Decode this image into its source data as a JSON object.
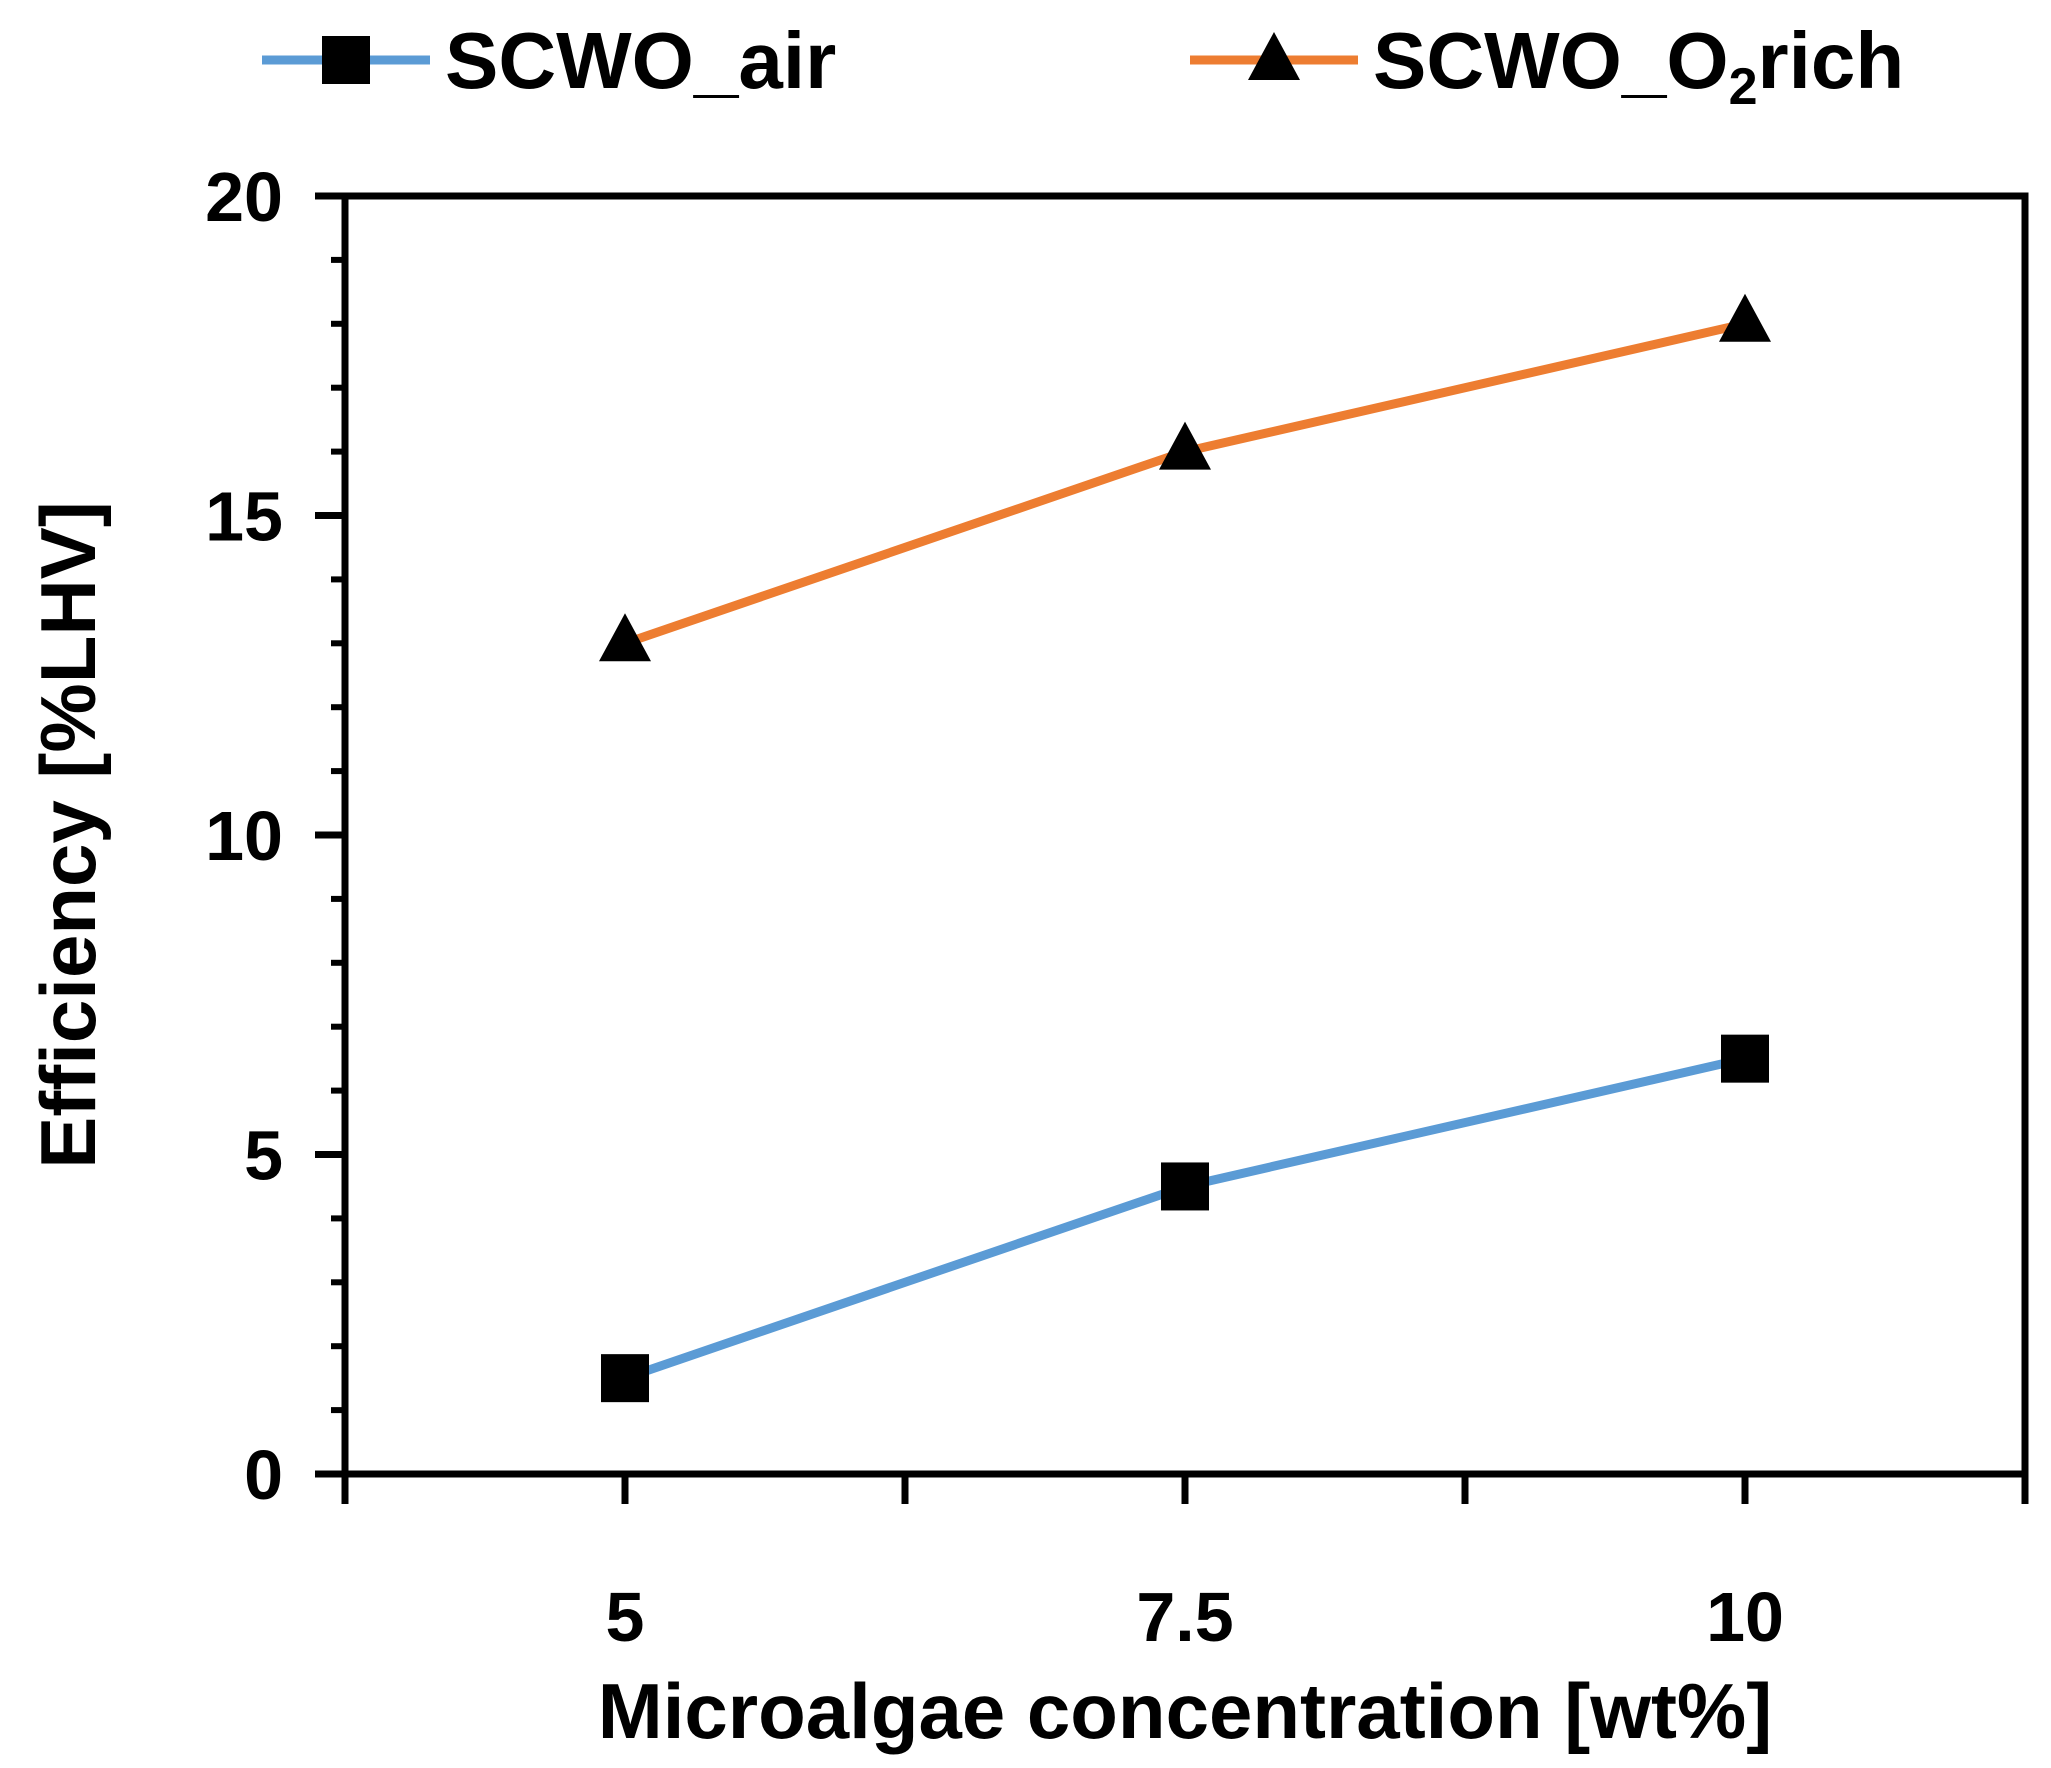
{
  "chart_data": {
    "type": "line",
    "title": "",
    "xlabel": "Microalgae concentration [wt%]",
    "ylabel": "Efficiency [%LHV]",
    "x": [
      5,
      7.5,
      10
    ],
    "x_tick_labels": [
      "5",
      "7.5",
      "10"
    ],
    "xlim": [
      3.75,
      11.25
    ],
    "ylim": [
      0,
      20
    ],
    "y_ticks": [
      0,
      5,
      10,
      15,
      20
    ],
    "y_tick_labels": [
      "0",
      "5",
      "10",
      "15",
      "20"
    ],
    "legend_position": "top",
    "series": [
      {
        "name": "SCWO_air",
        "legend_main": "SCWO_air",
        "legend_sub": "",
        "legend_tail": "",
        "marker": "square",
        "color": "#5B9BD5",
        "values": [
          1.5,
          4.5,
          6.5
        ]
      },
      {
        "name": "SCWO_O2rich",
        "legend_main": "SCWO_O",
        "legend_sub": "2",
        "legend_tail": "rich",
        "marker": "triangle",
        "color": "#ED7D31",
        "values": [
          13.0,
          16.0,
          18.0
        ]
      }
    ]
  }
}
